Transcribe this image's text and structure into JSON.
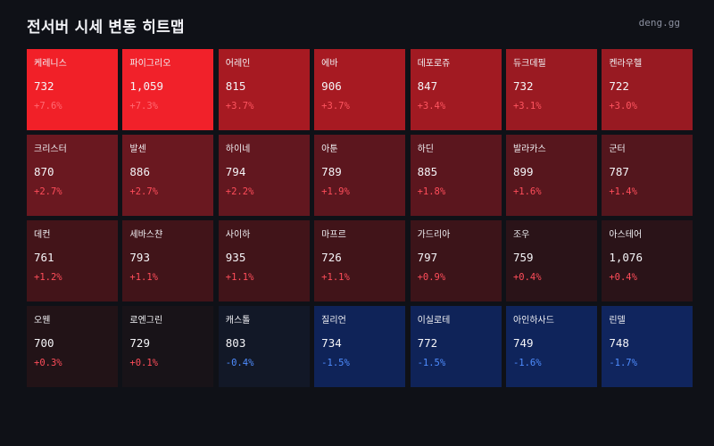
{
  "header": {
    "title": "전서버 시세 변동 히트맵",
    "brand": "deng.gg"
  },
  "colors": {
    "background": "#0f1117",
    "up_text": "#ff4d5a",
    "down_text": "#4f8dff"
  },
  "tiles": [
    {
      "name": "케레니스",
      "price": "732",
      "change": "+7.6%",
      "bg": "#f12028",
      "change_color": "#ff6a72"
    },
    {
      "name": "파이그리오",
      "price": "1,059",
      "change": "+7.3%",
      "bg": "#f1212a",
      "change_color": "#ff6a72"
    },
    {
      "name": "어레인",
      "price": "815",
      "change": "+3.7%",
      "bg": "#a71a22",
      "change_color": "#ff5560"
    },
    {
      "name": "에바",
      "price": "906",
      "change": "+3.7%",
      "bg": "#a71a22",
      "change_color": "#ff5560"
    },
    {
      "name": "데포로쥬",
      "price": "847",
      "change": "+3.4%",
      "bg": "#a11a22",
      "change_color": "#ff5560"
    },
    {
      "name": "듀크데필",
      "price": "732",
      "change": "+3.1%",
      "bg": "#9a1a22",
      "change_color": "#ff5560"
    },
    {
      "name": "켄라우헬",
      "price": "722",
      "change": "+3.0%",
      "bg": "#981a22",
      "change_color": "#ff5560"
    },
    {
      "name": "크리스터",
      "price": "870",
      "change": "+2.7%",
      "bg": "#6a1820",
      "change_color": "#ff4d5a"
    },
    {
      "name": "발센",
      "price": "886",
      "change": "+2.7%",
      "bg": "#6a1820",
      "change_color": "#ff4d5a"
    },
    {
      "name": "하이네",
      "price": "794",
      "change": "+2.2%",
      "bg": "#62171f",
      "change_color": "#ff4d5a"
    },
    {
      "name": "아툰",
      "price": "789",
      "change": "+1.9%",
      "bg": "#5c161e",
      "change_color": "#ff4d5a"
    },
    {
      "name": "하딘",
      "price": "885",
      "change": "+1.8%",
      "bg": "#5b161e",
      "change_color": "#ff4d5a"
    },
    {
      "name": "발라카스",
      "price": "899",
      "change": "+1.6%",
      "bg": "#57161d",
      "change_color": "#ff4d5a"
    },
    {
      "name": "군터",
      "price": "787",
      "change": "+1.4%",
      "bg": "#53161d",
      "change_color": "#ff4d5a"
    },
    {
      "name": "데컨",
      "price": "761",
      "change": "+1.2%",
      "bg": "#431419",
      "change_color": "#ff4d5a"
    },
    {
      "name": "세바스챤",
      "price": "793",
      "change": "+1.1%",
      "bg": "#411419",
      "change_color": "#ff4d5a"
    },
    {
      "name": "사이하",
      "price": "935",
      "change": "+1.1%",
      "bg": "#411419",
      "change_color": "#ff4d5a"
    },
    {
      "name": "마프르",
      "price": "726",
      "change": "+1.1%",
      "bg": "#411419",
      "change_color": "#ff4d5a"
    },
    {
      "name": "가드리아",
      "price": "797",
      "change": "+0.9%",
      "bg": "#3c1419",
      "change_color": "#ff4d5a"
    },
    {
      "name": "조우",
      "price": "759",
      "change": "+0.4%",
      "bg": "#2a1318",
      "change_color": "#ff4d5a"
    },
    {
      "name": "아스테어",
      "price": "1,076",
      "change": "+0.4%",
      "bg": "#2a1318",
      "change_color": "#ff4d5a"
    },
    {
      "name": "오웬",
      "price": "700",
      "change": "+0.3%",
      "bg": "#221317",
      "change_color": "#ff4d5a"
    },
    {
      "name": "로엔그린",
      "price": "729",
      "change": "+0.1%",
      "bg": "#181318",
      "change_color": "#ff4d5a"
    },
    {
      "name": "캐스톨",
      "price": "803",
      "change": "-0.4%",
      "bg": "#121827",
      "change_color": "#4f8dff"
    },
    {
      "name": "질리언",
      "price": "734",
      "change": "-1.5%",
      "bg": "#0f2358",
      "change_color": "#4f8dff"
    },
    {
      "name": "이실로테",
      "price": "772",
      "change": "-1.5%",
      "bg": "#0f2358",
      "change_color": "#4f8dff"
    },
    {
      "name": "아인하사드",
      "price": "749",
      "change": "-1.6%",
      "bg": "#0f245b",
      "change_color": "#4f8dff"
    },
    {
      "name": "린델",
      "price": "748",
      "change": "-1.7%",
      "bg": "#10255e",
      "change_color": "#4f8dff"
    }
  ]
}
